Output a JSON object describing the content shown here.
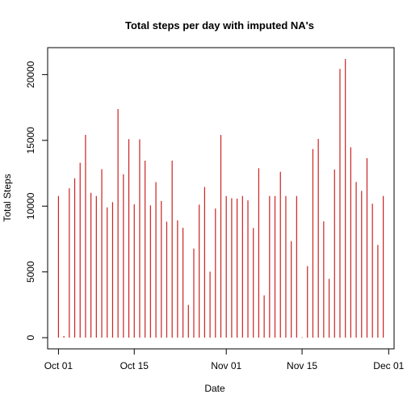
{
  "chart_data": {
    "type": "bar",
    "title": "Total steps per day with imputed NA's",
    "xlabel": "Date",
    "ylabel": "Total Steps",
    "series_color": "#cc2222",
    "x_start": "2012-10-01",
    "dates": [
      "2012-10-01",
      "2012-10-02",
      "2012-10-03",
      "2012-10-04",
      "2012-10-05",
      "2012-10-06",
      "2012-10-07",
      "2012-10-08",
      "2012-10-09",
      "2012-10-10",
      "2012-10-11",
      "2012-10-12",
      "2012-10-13",
      "2012-10-14",
      "2012-10-15",
      "2012-10-16",
      "2012-10-17",
      "2012-10-18",
      "2012-10-19",
      "2012-10-20",
      "2012-10-21",
      "2012-10-22",
      "2012-10-23",
      "2012-10-24",
      "2012-10-25",
      "2012-10-26",
      "2012-10-27",
      "2012-10-28",
      "2012-10-29",
      "2012-10-30",
      "2012-10-31",
      "2012-11-01",
      "2012-11-02",
      "2012-11-03",
      "2012-11-04",
      "2012-11-05",
      "2012-11-06",
      "2012-11-07",
      "2012-11-08",
      "2012-11-09",
      "2012-11-10",
      "2012-11-11",
      "2012-11-12",
      "2012-11-13",
      "2012-11-14",
      "2012-11-15",
      "2012-11-16",
      "2012-11-17",
      "2012-11-18",
      "2012-11-19",
      "2012-11-20",
      "2012-11-21",
      "2012-11-22",
      "2012-11-23",
      "2012-11-24",
      "2012-11-25",
      "2012-11-26",
      "2012-11-27",
      "2012-11-28",
      "2012-11-29",
      "2012-11-30"
    ],
    "values": [
      10766,
      126,
      11352,
      12116,
      13294,
      15420,
      11015,
      10766,
      12811,
      9900,
      10304,
      17382,
      12426,
      15098,
      10139,
      15084,
      13452,
      10056,
      11829,
      10395,
      8821,
      13460,
      8918,
      8355,
      2492,
      6778,
      10119,
      11458,
      5018,
      9819,
      15414,
      10766,
      10600,
      10571,
      10766,
      10439,
      8334,
      12883,
      3219,
      10766,
      10766,
      12608,
      10765,
      7336,
      10766,
      41,
      5441,
      14339,
      15110,
      8841,
      4472,
      12787,
      20427,
      21194,
      14478,
      11834,
      11162,
      13646,
      10183,
      7047,
      10766
    ],
    "y_ticks": [
      0,
      5000,
      10000,
      15000,
      20000
    ],
    "y_tick_labels": [
      "0",
      "5000",
      "10000",
      "15000",
      "20000"
    ],
    "x_ticks": [
      "2012-10-01",
      "2012-10-15",
      "2012-11-01",
      "2012-11-15",
      "2012-12-01"
    ],
    "x_tick_labels": [
      "Oct 01",
      "Oct 15",
      "Nov 01",
      "Nov 15",
      "Dec 01"
    ],
    "xlim": [
      "2012-09-29",
      "2012-12-02"
    ],
    "ylim": [
      -850,
      22050
    ],
    "grid": false,
    "legend": "none"
  }
}
